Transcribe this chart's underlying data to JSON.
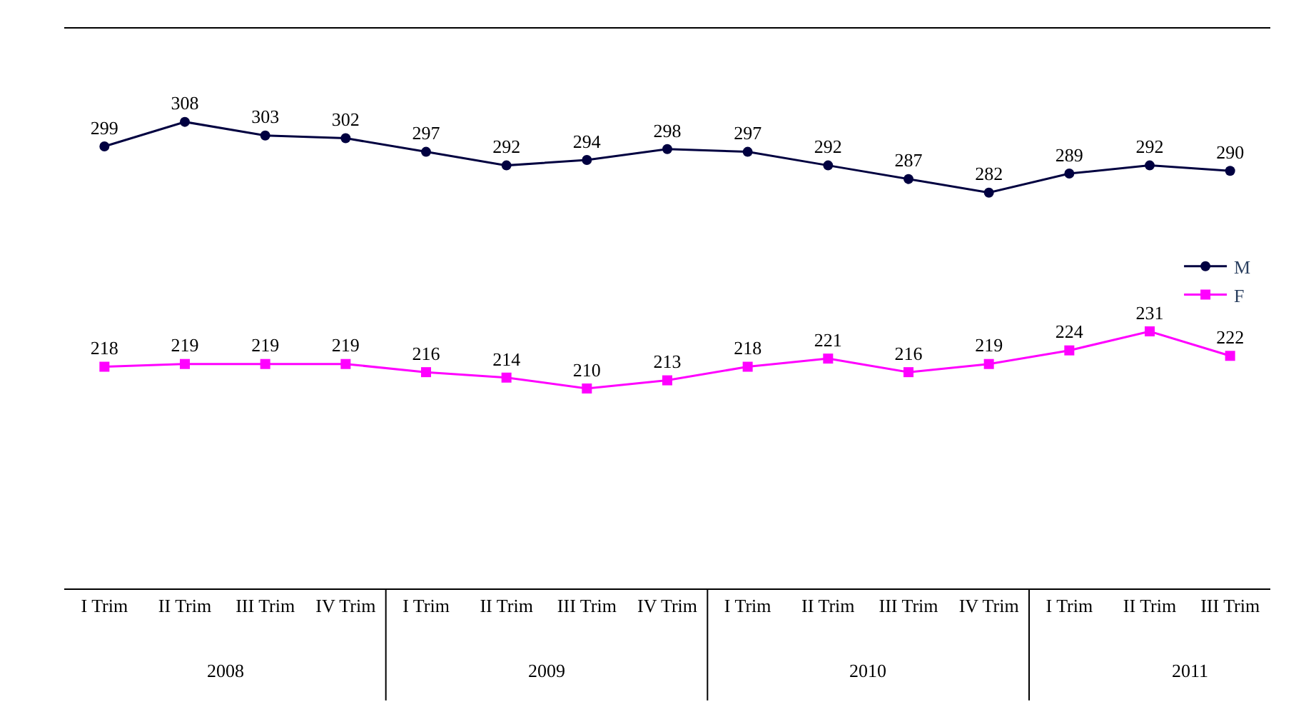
{
  "chart_data": {
    "type": "line",
    "categories": [
      "I Trim",
      "II Trim",
      "III Trim",
      "IV Trim",
      "I Trim",
      "II Trim",
      "III Trim",
      "IV Trim",
      "I Trim",
      "II Trim",
      "III Trim",
      "IV Trim",
      "I Trim",
      "II Trim",
      "III Trim"
    ],
    "series": [
      {
        "name": "M",
        "color": "#000040",
        "marker": "circle",
        "values": [
          299,
          308,
          303,
          302,
          297,
          292,
          294,
          298,
          297,
          292,
          287,
          282,
          289,
          292,
          290
        ]
      },
      {
        "name": "F",
        "color": "#ff00ff",
        "marker": "square",
        "values": [
          218,
          219,
          219,
          219,
          216,
          214,
          210,
          213,
          218,
          221,
          216,
          219,
          224,
          231,
          222
        ]
      }
    ],
    "annotations": [
      "2008",
      "2009",
      "2010",
      "2011"
    ],
    "data_labels": true,
    "legend": "right"
  }
}
